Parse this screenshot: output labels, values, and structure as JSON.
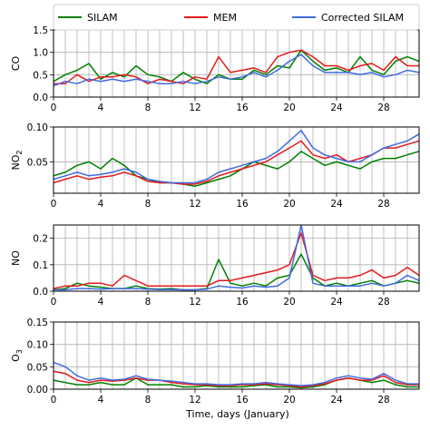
{
  "figure": {
    "xlabel": "Time, days (January)"
  },
  "legend": {
    "placement": "top",
    "entries": [
      "SILAM",
      "MEM",
      "Corrected SILAM"
    ]
  },
  "chart_data": [
    {
      "type": "line",
      "ylabel": "CO",
      "xlim": [
        0,
        31
      ],
      "ylim": [
        0,
        1.5
      ],
      "xticks": [
        "0",
        "4",
        "8",
        "12",
        "16",
        "20",
        "24",
        "28"
      ],
      "yticks": [
        "0.0",
        "0.5",
        "1.0",
        "1.5"
      ],
      "grid": true,
      "x": [
        0,
        1,
        2,
        3,
        4,
        5,
        6,
        7,
        8,
        9,
        10,
        11,
        12,
        13,
        14,
        15,
        16,
        17,
        18,
        19,
        20,
        21,
        22,
        23,
        24,
        25,
        26,
        27,
        28,
        29,
        30,
        31
      ],
      "series": [
        {
          "name": "SILAM",
          "color": "#008000",
          "values": [
            0.35,
            0.5,
            0.6,
            0.75,
            0.4,
            0.55,
            0.45,
            0.7,
            0.5,
            0.45,
            0.35,
            0.55,
            0.4,
            0.3,
            0.5,
            0.4,
            0.4,
            0.6,
            0.5,
            0.7,
            0.65,
            1.05,
            0.8,
            0.6,
            0.65,
            0.55,
            0.9,
            0.6,
            0.5,
            0.8,
            0.9,
            0.8
          ]
        },
        {
          "name": "MEM",
          "color": "#e41a1c",
          "values": [
            0.3,
            0.3,
            0.5,
            0.35,
            0.45,
            0.45,
            0.5,
            0.45,
            0.3,
            0.4,
            0.35,
            0.3,
            0.45,
            0.4,
            0.9,
            0.55,
            0.6,
            0.65,
            0.55,
            0.9,
            1.0,
            1.05,
            0.9,
            0.7,
            0.7,
            0.6,
            0.7,
            0.75,
            0.6,
            0.9,
            0.7,
            0.7
          ]
        },
        {
          "name": "Corrected SILAM",
          "color": "#4169e1",
          "values": [
            0.25,
            0.35,
            0.3,
            0.4,
            0.35,
            0.4,
            0.35,
            0.4,
            0.35,
            0.3,
            0.3,
            0.35,
            0.3,
            0.35,
            0.45,
            0.4,
            0.45,
            0.55,
            0.45,
            0.6,
            0.8,
            0.95,
            0.7,
            0.55,
            0.55,
            0.55,
            0.5,
            0.55,
            0.45,
            0.5,
            0.6,
            0.55
          ]
        }
      ]
    },
    {
      "type": "line",
      "ylabel": "NO2",
      "ylabel_main": "NO",
      "ylabel_sub": "2",
      "xlim": [
        0,
        31
      ],
      "ylim": [
        0.005,
        0.1
      ],
      "xticks": [
        "0",
        "4",
        "8",
        "12",
        "16",
        "20",
        "24",
        "28"
      ],
      "yticks": [
        "0.05",
        "0.10"
      ],
      "ytick_values": [
        0.05,
        0.1
      ],
      "grid": true,
      "x": [
        0,
        1,
        2,
        3,
        4,
        5,
        6,
        7,
        8,
        9,
        10,
        11,
        12,
        13,
        14,
        15,
        16,
        17,
        18,
        19,
        20,
        21,
        22,
        23,
        24,
        25,
        26,
        27,
        28,
        29,
        30,
        31
      ],
      "series": [
        {
          "name": "SILAM",
          "color": "#008000",
          "values": [
            0.03,
            0.035,
            0.045,
            0.05,
            0.04,
            0.055,
            0.045,
            0.03,
            0.025,
            0.02,
            0.02,
            0.018,
            0.015,
            0.02,
            0.025,
            0.03,
            0.04,
            0.05,
            0.045,
            0.04,
            0.05,
            0.065,
            0.055,
            0.045,
            0.05,
            0.045,
            0.04,
            0.05,
            0.055,
            0.055,
            0.06,
            0.065
          ]
        },
        {
          "name": "MEM",
          "color": "#e41a1c",
          "values": [
            0.02,
            0.025,
            0.03,
            0.025,
            0.028,
            0.03,
            0.035,
            0.03,
            0.022,
            0.02,
            0.02,
            0.018,
            0.018,
            0.022,
            0.03,
            0.035,
            0.04,
            0.045,
            0.05,
            0.06,
            0.07,
            0.08,
            0.06,
            0.055,
            0.06,
            0.05,
            0.055,
            0.06,
            0.07,
            0.07,
            0.075,
            0.08
          ]
        },
        {
          "name": "Corrected SILAM",
          "color": "#4169e1",
          "values": [
            0.025,
            0.03,
            0.035,
            0.03,
            0.032,
            0.035,
            0.04,
            0.035,
            0.025,
            0.022,
            0.02,
            0.02,
            0.02,
            0.025,
            0.035,
            0.04,
            0.045,
            0.05,
            0.055,
            0.065,
            0.08,
            0.095,
            0.07,
            0.06,
            0.055,
            0.05,
            0.05,
            0.06,
            0.07,
            0.075,
            0.08,
            0.09
          ]
        }
      ]
    },
    {
      "type": "line",
      "ylabel": "NO",
      "xlim": [
        0,
        31
      ],
      "ylim": [
        0,
        0.25
      ],
      "xticks": [
        "0",
        "4",
        "8",
        "12",
        "16",
        "20",
        "24",
        "28"
      ],
      "yticks": [
        "0.0",
        "0.1",
        "0.2"
      ],
      "ytick_values": [
        0,
        0.1,
        0.2
      ],
      "grid": true,
      "x": [
        0,
        1,
        2,
        3,
        4,
        5,
        6,
        7,
        8,
        9,
        10,
        11,
        12,
        13,
        14,
        15,
        16,
        17,
        18,
        19,
        20,
        21,
        22,
        23,
        24,
        25,
        26,
        27,
        28,
        29,
        30,
        31
      ],
      "series": [
        {
          "name": "SILAM",
          "color": "#008000",
          "values": [
            0.005,
            0.01,
            0.03,
            0.02,
            0.015,
            0.01,
            0.01,
            0.02,
            0.01,
            0.008,
            0.01,
            0.005,
            0.005,
            0.01,
            0.12,
            0.03,
            0.02,
            0.03,
            0.02,
            0.05,
            0.06,
            0.14,
            0.05,
            0.02,
            0.03,
            0.02,
            0.03,
            0.04,
            0.02,
            0.03,
            0.04,
            0.03
          ]
        },
        {
          "name": "MEM",
          "color": "#e41a1c",
          "values": [
            0.01,
            0.02,
            0.02,
            0.03,
            0.03,
            0.02,
            0.06,
            0.04,
            0.02,
            0.02,
            0.02,
            0.02,
            0.02,
            0.02,
            0.04,
            0.04,
            0.05,
            0.06,
            0.07,
            0.08,
            0.1,
            0.22,
            0.06,
            0.04,
            0.05,
            0.05,
            0.06,
            0.08,
            0.05,
            0.06,
            0.09,
            0.06
          ]
        },
        {
          "name": "Corrected SILAM",
          "color": "#4169e1",
          "values": [
            0.005,
            0.005,
            0.01,
            0.01,
            0.008,
            0.01,
            0.01,
            0.01,
            0.008,
            0.006,
            0.006,
            0.005,
            0.005,
            0.008,
            0.02,
            0.015,
            0.012,
            0.02,
            0.015,
            0.02,
            0.05,
            0.25,
            0.03,
            0.02,
            0.02,
            0.02,
            0.02,
            0.03,
            0.02,
            0.03,
            0.06,
            0.04
          ]
        }
      ]
    },
    {
      "type": "line",
      "ylabel": "O3",
      "ylabel_main": "O",
      "ylabel_sub": "3",
      "xlim": [
        0,
        31
      ],
      "ylim": [
        0,
        0.15
      ],
      "xticks": [
        "0",
        "4",
        "8",
        "12",
        "16",
        "20",
        "24",
        "28"
      ],
      "yticks": [
        "0.00",
        "0.05",
        "0.10",
        "0.15"
      ],
      "ytick_values": [
        0,
        0.05,
        0.1,
        0.15
      ],
      "grid": true,
      "x": [
        0,
        1,
        2,
        3,
        4,
        5,
        6,
        7,
        8,
        9,
        10,
        11,
        12,
        13,
        14,
        15,
        16,
        17,
        18,
        19,
        20,
        21,
        22,
        23,
        24,
        25,
        26,
        27,
        28,
        29,
        30,
        31
      ],
      "series": [
        {
          "name": "SILAM",
          "color": "#008000",
          "values": [
            0.02,
            0.015,
            0.01,
            0.01,
            0.015,
            0.01,
            0.01,
            0.025,
            0.01,
            0.01,
            0.01,
            0.005,
            0.005,
            0.008,
            0.005,
            0.005,
            0.005,
            0.008,
            0.01,
            0.005,
            0.005,
            0.003,
            0.005,
            0.01,
            0.02,
            0.025,
            0.02,
            0.015,
            0.02,
            0.01,
            0.005,
            0.005
          ]
        },
        {
          "name": "MEM",
          "color": "#e41a1c",
          "values": [
            0.04,
            0.035,
            0.02,
            0.015,
            0.02,
            0.018,
            0.02,
            0.025,
            0.02,
            0.02,
            0.015,
            0.012,
            0.01,
            0.01,
            0.008,
            0.008,
            0.01,
            0.01,
            0.012,
            0.01,
            0.008,
            0.005,
            0.008,
            0.012,
            0.02,
            0.025,
            0.02,
            0.02,
            0.03,
            0.015,
            0.01,
            0.01
          ]
        },
        {
          "name": "Corrected SILAM",
          "color": "#4169e1",
          "values": [
            0.06,
            0.05,
            0.03,
            0.02,
            0.025,
            0.02,
            0.022,
            0.03,
            0.022,
            0.02,
            0.018,
            0.015,
            0.012,
            0.012,
            0.01,
            0.01,
            0.012,
            0.012,
            0.015,
            0.012,
            0.01,
            0.008,
            0.01,
            0.015,
            0.025,
            0.03,
            0.025,
            0.022,
            0.035,
            0.02,
            0.012,
            0.012
          ]
        }
      ]
    }
  ]
}
